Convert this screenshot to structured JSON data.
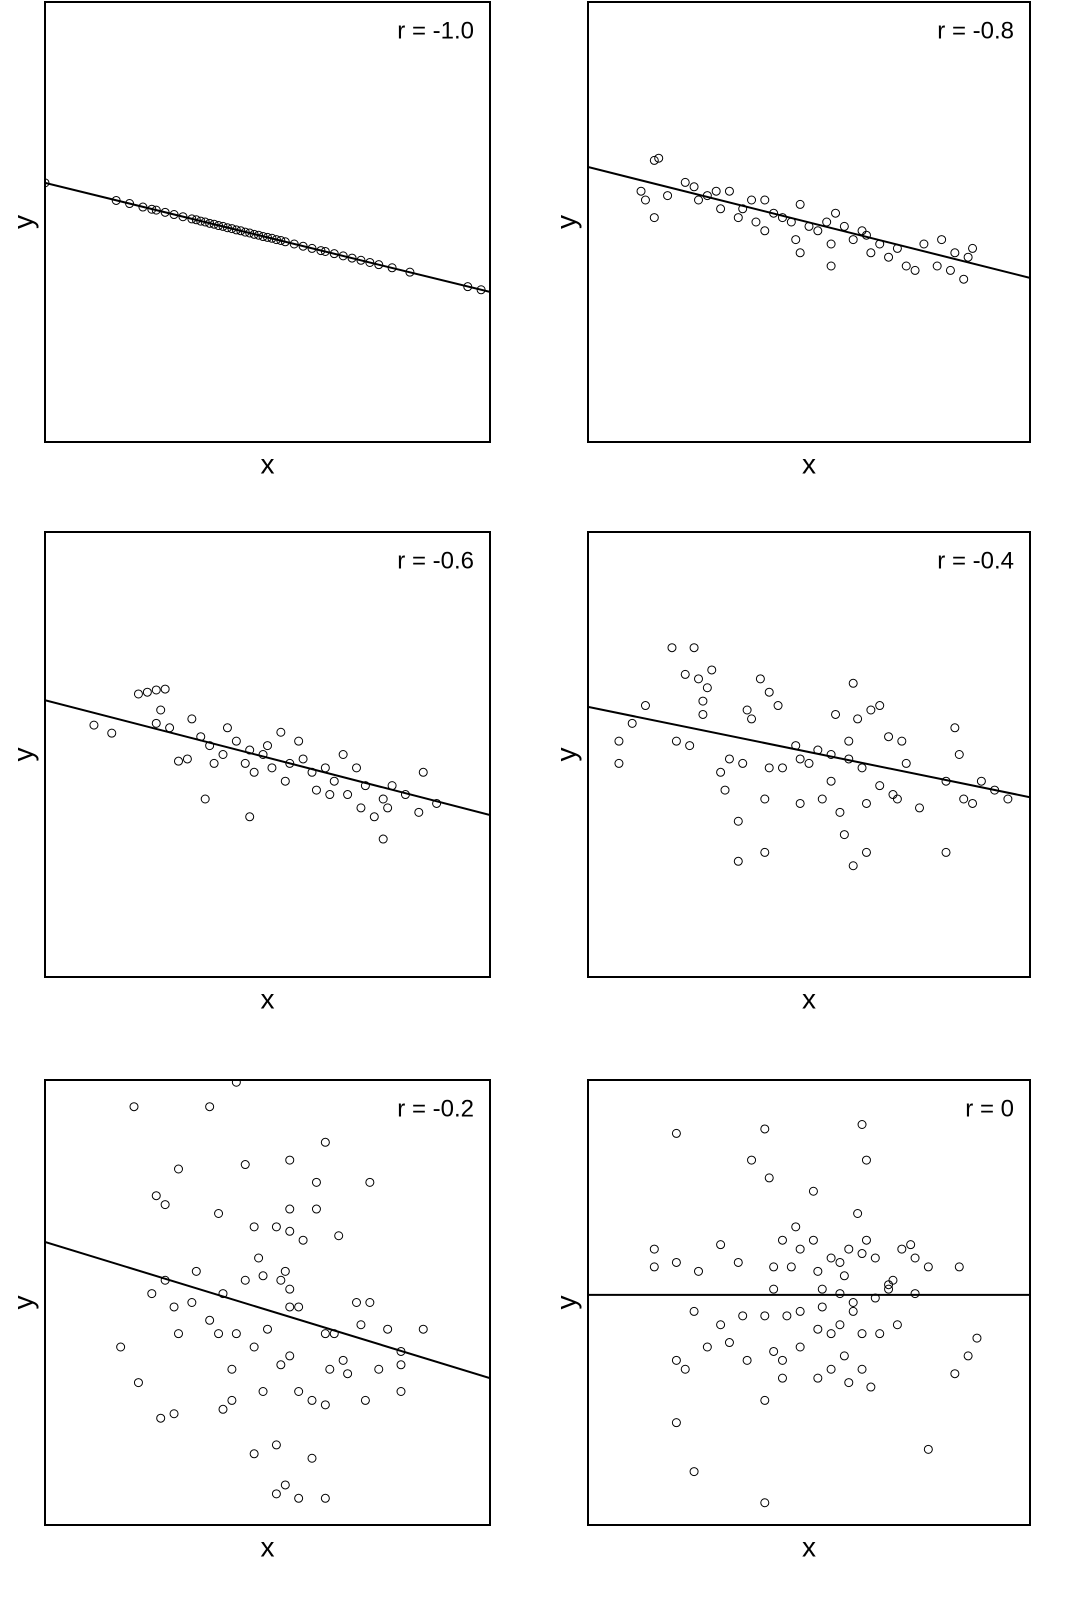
{
  "chart_data": [
    {
      "type": "scatter",
      "annotation": "r = -1.0",
      "x_label": "x",
      "y_label": "y",
      "xlim": [
        0,
        100
      ],
      "ylim": [
        0,
        100
      ],
      "x": [
        0,
        16,
        19,
        22,
        24,
        25,
        27,
        29,
        31,
        33,
        34,
        35,
        36,
        37,
        38,
        39,
        40,
        41,
        42,
        43,
        44,
        45,
        46,
        47,
        48,
        49,
        50,
        51,
        52,
        53,
        54,
        56,
        58,
        60,
        62,
        63,
        65,
        67,
        69,
        71,
        73,
        75,
        78,
        82,
        95,
        98
      ],
      "values": [
        58.9,
        54.9,
        54.2,
        53.4,
        52.9,
        52.7,
        52.2,
        51.7,
        51.2,
        50.7,
        50.5,
        50.2,
        50.0,
        49.7,
        49.5,
        49.2,
        49.0,
        48.7,
        48.5,
        48.2,
        48.0,
        47.7,
        47.5,
        47.2,
        47.0,
        46.7,
        46.5,
        46.3,
        46.0,
        45.8,
        45.5,
        45.0,
        44.5,
        44.0,
        43.5,
        43.3,
        42.8,
        42.3,
        41.8,
        41.3,
        40.8,
        40.3,
        39.6,
        38.6,
        35.3,
        34.6
      ],
      "fit_line": {
        "x": [
          0,
          100
        ],
        "values": [
          58.9,
          34.1
        ]
      }
    },
    {
      "type": "scatter",
      "annotation": "r = -0.8",
      "x_label": "x",
      "y_label": "y",
      "xlim": [
        0,
        100
      ],
      "ylim": [
        0,
        100
      ],
      "x": [
        16,
        15,
        12,
        13,
        15,
        18,
        22,
        24,
        25,
        27,
        29,
        30,
        32,
        35,
        37,
        38,
        40,
        42,
        44,
        46,
        47,
        48,
        50,
        52,
        54,
        55,
        56,
        58,
        60,
        62,
        63,
        64,
        66,
        68,
        70,
        72,
        74,
        76,
        79,
        80,
        82,
        83,
        85,
        86,
        87,
        48,
        55,
        40,
        34
      ],
      "values": [
        64.5,
        64,
        57,
        55,
        51,
        56,
        59,
        58,
        55,
        56,
        57,
        53,
        57,
        53,
        55,
        50,
        55,
        52,
        51,
        50,
        46,
        54,
        49,
        48,
        50,
        45,
        52,
        49,
        46,
        48,
        47,
        43,
        45,
        42,
        44,
        40,
        39,
        45,
        40,
        46,
        39,
        43,
        37,
        42,
        44,
        43,
        40,
        48,
        51
      ],
      "fit_line": {
        "x": [
          0,
          100
        ],
        "values": [
          62.5,
          37.3
        ]
      }
    },
    {
      "type": "scatter",
      "annotation": "r = -0.6",
      "x_label": "x",
      "y_label": "y",
      "xlim": [
        0,
        100
      ],
      "ylim": [
        0,
        100
      ],
      "x": [
        11,
        15,
        21,
        23,
        25,
        27,
        26,
        25,
        28,
        30,
        32,
        33,
        35,
        37,
        38,
        40,
        41,
        43,
        45,
        46,
        47,
        49,
        50,
        51,
        53,
        54,
        55,
        57,
        58,
        60,
        61,
        63,
        65,
        67,
        68,
        70,
        71,
        72,
        74,
        76,
        78,
        81,
        84,
        85,
        88,
        46,
        77,
        64,
        36,
        76
      ],
      "values": [
        56.6,
        54.8,
        63.6,
        64.0,
        64.5,
        64.7,
        60,
        57,
        56,
        48.5,
        49,
        58,
        54,
        52,
        48,
        50,
        56,
        53,
        48,
        51,
        46,
        50,
        52,
        47,
        55,
        44,
        48,
        53,
        49,
        46,
        42,
        47,
        44,
        50,
        41,
        47,
        38,
        43,
        36,
        40,
        43,
        41,
        37,
        46,
        39,
        36,
        38,
        41,
        40,
        31
      ],
      "fit_line": {
        "x": [
          0,
          100
        ],
        "values": [
          62.2,
          36.4
        ]
      }
    },
    {
      "type": "scatter",
      "annotation": "r = -0.4",
      "x_label": "x",
      "y_label": "y",
      "xlim": [
        0,
        100
      ],
      "ylim": [
        0,
        100
      ],
      "x": [
        7,
        7,
        10,
        13,
        19,
        20,
        23,
        24,
        22,
        25,
        26,
        27,
        28,
        26,
        30,
        31,
        34,
        32,
        35,
        36,
        37,
        39,
        41,
        40,
        41,
        43,
        44,
        47,
        48,
        48,
        50,
        52,
        53,
        55,
        55,
        56,
        57,
        58,
        59,
        59,
        60,
        61,
        62,
        63,
        63,
        64,
        66,
        66,
        68,
        69,
        70,
        71,
        72,
        75,
        81,
        81,
        84,
        83,
        85,
        89,
        95,
        87,
        92,
        34,
        60,
        40
      ],
      "values": [
        48,
        53,
        57,
        61,
        74,
        53,
        52,
        74,
        68,
        67,
        62,
        65,
        69,
        59,
        46,
        42,
        35,
        49,
        48,
        60,
        58,
        67,
        47,
        40,
        64,
        61,
        47,
        52,
        49,
        39,
        48,
        51,
        40,
        50,
        44,
        59,
        37,
        32,
        49,
        53,
        66,
        58,
        47,
        28,
        39,
        60,
        61,
        43,
        54,
        41,
        40,
        53,
        48,
        38,
        28,
        44,
        50,
        56,
        40,
        44,
        40,
        39,
        42,
        26,
        25,
        28
      ],
      "fit_line": {
        "x": [
          0,
          100
        ],
        "values": [
          60.7,
          40.4
        ]
      }
    },
    {
      "type": "scatter",
      "annotation": "r = -0.2",
      "x_label": "x",
      "y_label": "y",
      "xlim": [
        0,
        100
      ],
      "ylim": [
        0,
        100
      ],
      "x": [
        20,
        37,
        43,
        63,
        55,
        45,
        61,
        30,
        25,
        27,
        39,
        55,
        61,
        73,
        47,
        52,
        55,
        58,
        66,
        54,
        48,
        40,
        45,
        53,
        49,
        55,
        57,
        33,
        29,
        30,
        37,
        43,
        55,
        65,
        70,
        73,
        63,
        50,
        39,
        42,
        47,
        53,
        55,
        64,
        67,
        75,
        80,
        80,
        77,
        85,
        72,
        63,
        49,
        42,
        26,
        21,
        40,
        57,
        52,
        60,
        52,
        54,
        57,
        63,
        47,
        80,
        68,
        60,
        27,
        24,
        34,
        71,
        17,
        29
      ],
      "values": [
        94,
        94,
        99.5,
        86,
        82,
        81,
        77,
        80,
        74,
        72,
        70,
        71,
        71,
        77,
        67,
        67,
        66,
        64,
        65,
        57,
        60,
        52,
        55,
        55,
        56,
        53,
        49,
        50,
        49,
        43,
        46,
        43,
        49,
        43,
        50,
        50,
        43,
        44,
        43,
        35,
        40,
        36,
        38,
        35,
        37,
        35,
        36,
        39,
        44,
        44,
        28,
        27,
        30,
        28,
        24,
        32,
        26,
        30,
        18,
        15,
        7,
        9,
        6,
        6,
        16,
        30,
        34,
        28,
        55,
        52,
        57,
        45,
        40,
        25
      ],
      "fit_line": {
        "x": [
          0,
          100
        ],
        "values": [
          63.6,
          33.0
        ]
      }
    },
    {
      "type": "scatter",
      "annotation": "r = 0",
      "x_label": "x",
      "y_label": "y",
      "xlim": [
        0,
        100
      ],
      "ylim": [
        0,
        100
      ],
      "x": [
        20,
        40,
        62,
        37,
        41,
        63,
        51,
        61,
        15,
        30,
        44,
        48,
        47,
        51,
        55,
        57,
        59,
        62,
        63,
        65,
        71,
        73,
        74,
        84,
        77,
        69,
        68,
        58,
        52,
        46,
        42,
        34,
        25,
        20,
        15,
        42,
        53,
        57,
        60,
        65,
        53,
        48,
        45,
        40,
        35,
        30,
        24,
        57,
        60,
        62,
        66,
        55,
        52,
        48,
        42,
        58,
        44,
        36,
        32,
        27,
        22,
        20,
        62,
        55,
        59,
        64,
        86,
        83,
        20,
        24,
        40,
        44,
        77,
        40,
        52,
        70,
        74,
        88,
        68
      ],
      "values": [
        88,
        89,
        90,
        82,
        78,
        82,
        75,
        70,
        62,
        63,
        64,
        62,
        67,
        64,
        60,
        59,
        62,
        61,
        64,
        60,
        62,
        63,
        60,
        58,
        58,
        55,
        54,
        56,
        57,
        58,
        58,
        59,
        57,
        59,
        58,
        53,
        53,
        52,
        50,
        51,
        49,
        48,
        47,
        47,
        47,
        45,
        48,
        45,
        48,
        43,
        43,
        43,
        44,
        40,
        39,
        38,
        37,
        37,
        41,
        40,
        35,
        37,
        35,
        35,
        32,
        31,
        38,
        34,
        23,
        12,
        28,
        33,
        17,
        5,
        33,
        45,
        52,
        42,
        53
      ],
      "fit_line": {
        "x": [
          0,
          100
        ],
        "values": [
          51.7,
          51.7
        ]
      }
    }
  ]
}
